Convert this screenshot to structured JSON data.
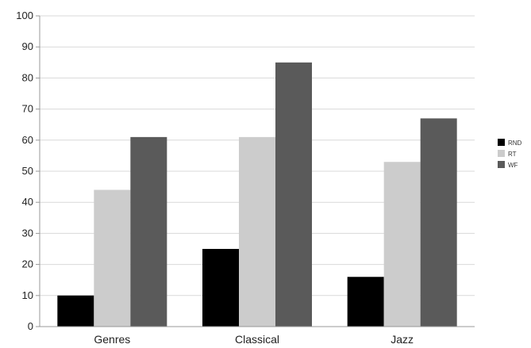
{
  "chart_data": {
    "type": "bar",
    "categories": [
      "Genres",
      "Classical",
      "Jazz"
    ],
    "series": [
      {
        "name": "RND",
        "color": "#000000",
        "values": [
          10,
          25,
          16
        ]
      },
      {
        "name": "RT",
        "color": "#cccccc",
        "values": [
          44,
          61,
          53
        ]
      },
      {
        "name": "WF",
        "color": "#5a5a5a",
        "values": [
          61,
          85,
          67
        ]
      }
    ],
    "ylim": [
      0,
      100
    ],
    "yticks": [
      "0",
      "10",
      "20",
      "30",
      "40",
      "50",
      "60",
      "70",
      "80",
      "90",
      "100"
    ],
    "grid": true,
    "legend_position": "right"
  }
}
